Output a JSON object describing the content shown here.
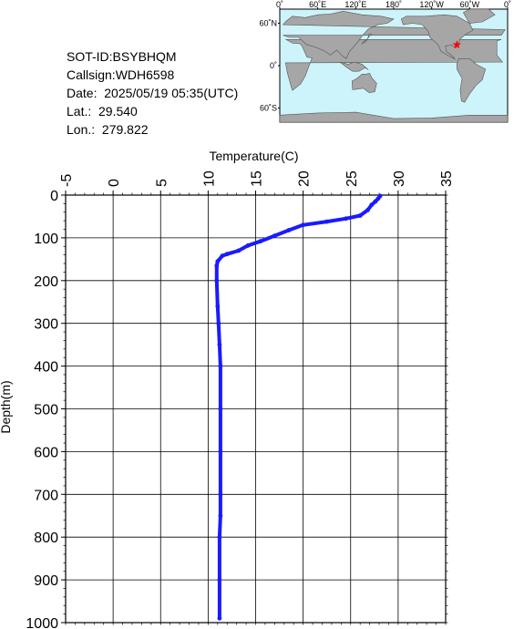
{
  "info": {
    "sot_id": "SOT-ID:BSYBHQM",
    "callsign": "Callsign:WDH6598",
    "date": "Date:  2025/05/19 05:35(UTC)",
    "lat": "Lat.:  29.540",
    "lon": "Lon.:  279.822"
  },
  "map": {
    "top_labels": [
      "0˚",
      "60˚E",
      "120˚E",
      "180˚",
      "120˚W",
      "60˚W",
      "0˚"
    ],
    "left_labels": [
      "60˚N",
      "0˚",
      "60˚S"
    ],
    "ocean_color": "#cdf4fb",
    "land_color": "#a6a6a6",
    "marker": {
      "lat": 29.54,
      "lon": 279.822,
      "color": "#ff0000"
    }
  },
  "chart_data": {
    "type": "line",
    "xlabel": "Temperature(C)",
    "ylabel": "Depth(m)",
    "xlim": [
      -5,
      35
    ],
    "ylim": [
      0,
      1000
    ],
    "y_inverted": true,
    "x_ticks": [
      "-5",
      "0",
      "5",
      "10",
      "15",
      "20",
      "25",
      "30",
      "35"
    ],
    "y_ticks": [
      "0",
      "100",
      "200",
      "300",
      "400",
      "500",
      "600",
      "700",
      "800",
      "900",
      "1000"
    ],
    "grid": true,
    "series": [
      {
        "color": "#1a1aff",
        "points": [
          [
            28.1,
            2
          ],
          [
            27.9,
            8
          ],
          [
            27.6,
            15
          ],
          [
            27.2,
            23
          ],
          [
            26.8,
            35
          ],
          [
            26.0,
            48
          ],
          [
            24.5,
            55
          ],
          [
            22.5,
            62
          ],
          [
            20.0,
            70
          ],
          [
            18.5,
            82
          ],
          [
            17.0,
            95
          ],
          [
            15.5,
            108
          ],
          [
            14.2,
            118
          ],
          [
            13.2,
            130
          ],
          [
            12.0,
            138
          ],
          [
            11.5,
            142
          ],
          [
            11.0,
            155
          ],
          [
            10.9,
            165
          ],
          [
            10.9,
            200
          ],
          [
            11.0,
            260
          ],
          [
            11.1,
            300
          ],
          [
            11.2,
            350
          ],
          [
            11.3,
            400
          ],
          [
            11.3,
            500
          ],
          [
            11.3,
            600
          ],
          [
            11.3,
            700
          ],
          [
            11.3,
            750
          ],
          [
            11.2,
            800
          ],
          [
            11.2,
            900
          ],
          [
            11.2,
            990
          ]
        ]
      }
    ]
  }
}
